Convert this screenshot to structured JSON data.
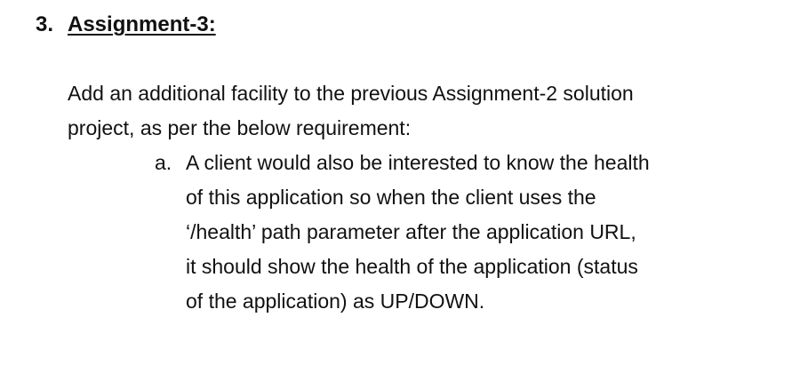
{
  "heading": {
    "number": "3.",
    "title": "Assignment-3:"
  },
  "intro": {
    "lines": [
      "Add an additional facility to the previous Assignment-2 solution",
      "project, as per the below requirement:"
    ]
  },
  "requirements": [
    {
      "marker": "a.",
      "lines": [
        "A client would also be interested to know the health",
        "of this application so when the client uses the",
        "‘/health’ path parameter after the application URL,",
        "it should show the health of the application (status",
        "of the application) as UP/DOWN."
      ]
    }
  ]
}
